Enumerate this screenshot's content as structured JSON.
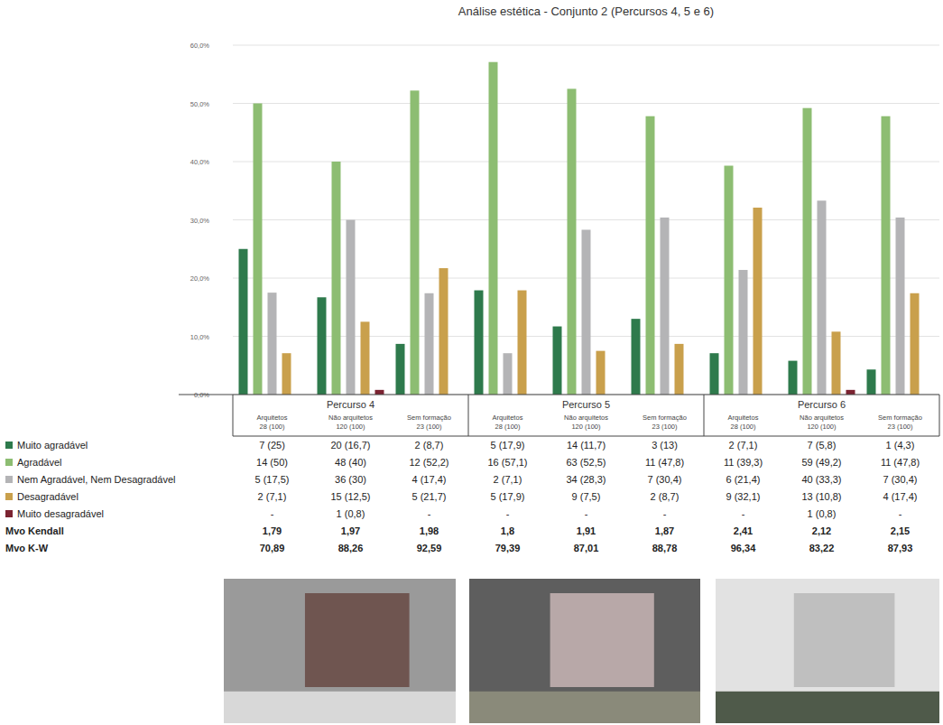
{
  "chart_data": {
    "type": "bar",
    "title": "Análise estética - Conjunto 2 (Percursos 4, 5 e 6)",
    "groups": [
      "Percurso 4",
      "Percurso 5",
      "Percurso 6"
    ],
    "categories": [
      "Arquitetos",
      "Não arquitetos",
      "Sem formação",
      "Arquitetos",
      "Não arquitetos",
      "Sem formação",
      "Arquitetos",
      "Não arquitetos",
      "Sem formação"
    ],
    "category_sublabels": [
      "28 (100)",
      "120 (100)",
      "23 (100)",
      "28 (100)",
      "120 (100)",
      "23 (100)",
      "28 (100)",
      "120 (100)",
      "23 (100)"
    ],
    "ylim": [
      0,
      60
    ],
    "yticks": [
      {
        "value": 0,
        "label": "0,0%"
      },
      {
        "value": 10,
        "label": "10,0%"
      },
      {
        "value": 20,
        "label": "20,0%"
      },
      {
        "value": 30,
        "label": "30,0%"
      },
      {
        "value": 40,
        "label": "40,0%"
      },
      {
        "value": 50,
        "label": "50,0%"
      },
      {
        "value": 60,
        "label": "60,0%"
      }
    ],
    "grid": true,
    "series": [
      {
        "name": "Muito agradável",
        "color": "#2e7a4c",
        "values": [
          25,
          16.7,
          8.7,
          17.9,
          11.7,
          13,
          7.1,
          5.8,
          4.3
        ],
        "value_labels": [
          "7 (25)",
          "20 (16,7)",
          "2 (8,7)",
          "5 (17,9)",
          "14 (11,7)",
          "3 (13)",
          "2 (7,1)",
          "7 (5,8)",
          "1 (4,3)"
        ]
      },
      {
        "name": "Agradável",
        "color": "#8dbd72",
        "values": [
          50,
          40,
          52.2,
          57.1,
          52.5,
          47.8,
          39.3,
          49.2,
          47.8
        ],
        "value_labels": [
          "14 (50)",
          "48 (40)",
          "12 (52,2)",
          "16 (57,1)",
          "63 (52,5)",
          "11 (47,8)",
          "11 (39,3)",
          "59 (49,2)",
          "11 (47,8)"
        ]
      },
      {
        "name": "Nem Agradável, Nem Desagradável",
        "color": "#b4b4b6",
        "values": [
          17.5,
          30,
          17.4,
          7.1,
          28.3,
          30.4,
          21.4,
          33.3,
          30.4
        ],
        "value_labels": [
          "5 (17,5)",
          "36 (30)",
          "4 (17,4)",
          "2 (7,1)",
          "34 (28,3)",
          "7 (30,4)",
          "6 (21,4)",
          "40 (33,3)",
          "7 (30,4)"
        ]
      },
      {
        "name": "Desagradável",
        "color": "#c9a04c",
        "values": [
          7.1,
          12.5,
          21.7,
          17.9,
          7.5,
          8.7,
          32.1,
          10.8,
          17.4
        ],
        "value_labels": [
          "2 (7,1)",
          "15 (12,5)",
          "5 (21,7)",
          "5 (17,9)",
          "9 (7,5)",
          "2 (8,7)",
          "9 (32,1)",
          "13 (10,8)",
          "4 (17,4)"
        ]
      },
      {
        "name": "Muito desagradável",
        "color": "#7b2331",
        "values": [
          null,
          0.8,
          null,
          null,
          null,
          null,
          null,
          0.8,
          null
        ],
        "value_labels": [
          "-",
          "1 (0,8)",
          "-",
          "-",
          "-",
          "-",
          "-",
          "1 (0,8)",
          "-"
        ]
      }
    ],
    "extra_rows": [
      {
        "name": "Mvo Kendall",
        "labels": [
          "1,79",
          "1,97",
          "1,98",
          "1,8",
          "1,91",
          "1,87",
          "2,41",
          "2,12",
          "2,15"
        ]
      },
      {
        "name": "Mvo K-W",
        "labels": [
          "70,89",
          "88,26",
          "92,59",
          "79,39",
          "87,01",
          "88,78",
          "96,34",
          "83,22",
          "87,93"
        ]
      }
    ]
  }
}
